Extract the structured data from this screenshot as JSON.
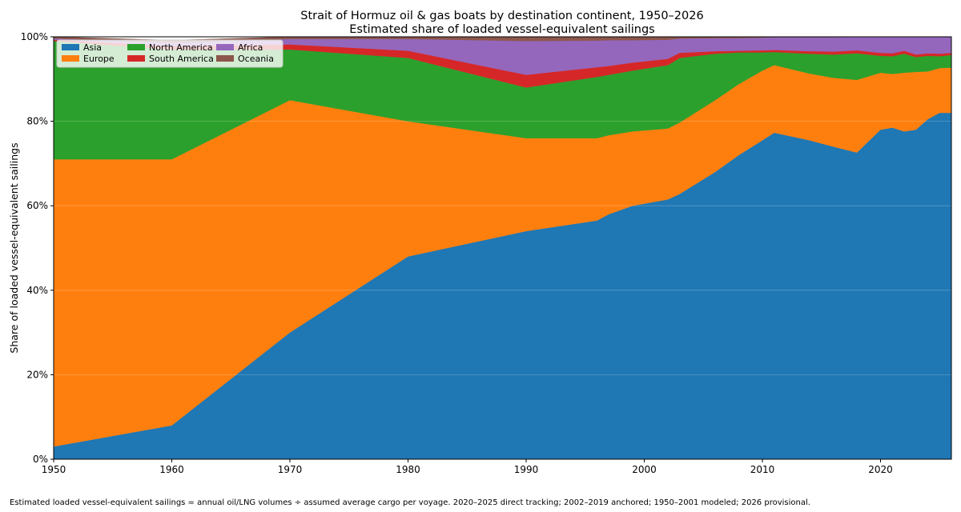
{
  "chart_data": {
    "type": "area",
    "stacked": true,
    "title": "Strait of Hormuz oil & gas boats by destination continent, 1950–2026",
    "subtitle": "Estimated share of loaded vessel-equivalent sailings",
    "xlabel": "",
    "ylabel": "Share of loaded vessel-equivalent sailings",
    "xlim": [
      1950,
      2026
    ],
    "ylim": [
      0,
      100
    ],
    "x_ticks": [
      1950,
      1960,
      1970,
      1980,
      1990,
      2000,
      2010,
      2020
    ],
    "y_ticks": [
      0,
      20,
      40,
      60,
      80,
      100
    ],
    "y_tick_labels": [
      "0%",
      "20%",
      "40%",
      "60%",
      "80%",
      "100%"
    ],
    "legend_position": "top-left",
    "grid": "horizontal",
    "x": [
      1950,
      1960,
      1970,
      1980,
      1990,
      1996,
      1997,
      1999,
      2002,
      2003,
      2006,
      2008,
      2010,
      2011,
      2014,
      2016,
      2018,
      2020,
      2021,
      2022,
      2023,
      2024,
      2025,
      2026
    ],
    "series": [
      {
        "name": "Asia",
        "color": "#1f77b4",
        "values": [
          3,
          8,
          30,
          48,
          54,
          56.5,
          58,
          60,
          61.5,
          62.8,
          68,
          72,
          75.5,
          77.3,
          75.5,
          74,
          72.6,
          78,
          78.5,
          77.6,
          78,
          80.5,
          82,
          82
        ]
      },
      {
        "name": "Europe",
        "color": "#ff7f0e",
        "values": [
          68,
          63,
          55,
          32,
          22,
          19.5,
          18.7,
          17.6,
          16.8,
          16.9,
          17,
          16.8,
          16.5,
          16,
          15.8,
          16.3,
          17.2,
          13.5,
          12.7,
          13.9,
          13.7,
          11.3,
          10.6,
          10.7
        ]
      },
      {
        "name": "North America",
        "color": "#2ca02c",
        "values": [
          28,
          26,
          12,
          15,
          12,
          14.5,
          14.3,
          14.4,
          15,
          15.3,
          11,
          7.5,
          4.3,
          3.1,
          4.7,
          5.5,
          6.3,
          4,
          4.2,
          4.5,
          3.5,
          3.7,
          2.8,
          3
        ]
      },
      {
        "name": "South America",
        "color": "#d62728",
        "values": [
          0.3,
          0.8,
          1.2,
          1.7,
          3,
          2.3,
          2.1,
          1.9,
          1.5,
          1.2,
          0.6,
          0.4,
          0.5,
          0.5,
          0.6,
          0.7,
          0.7,
          0.7,
          0.7,
          0.7,
          0.6,
          0.6,
          0.6,
          0.5
        ]
      },
      {
        "name": "Africa",
        "color": "#9467bd",
        "values": [
          0.3,
          0.8,
          1.3,
          2.8,
          8,
          6.3,
          6.1,
          5.3,
          4.5,
          3.4,
          3.1,
          3,
          3,
          3,
          3.3,
          3.4,
          3.2,
          3.8,
          3.9,
          3.3,
          4.2,
          3.9,
          4,
          3.8
        ]
      },
      {
        "name": "Oceania",
        "color": "#8c564b",
        "values": [
          0.4,
          0.6,
          0.5,
          0.5,
          1,
          0.9,
          0.8,
          0.8,
          0.7,
          0.4,
          0.3,
          0.3,
          0.2,
          0.1,
          0.1,
          0.1,
          0,
          0,
          0,
          0,
          0,
          0,
          0,
          0
        ]
      }
    ]
  },
  "footnote": "Estimated loaded vessel-equivalent sailings = annual oil/LNG volumes ÷ assumed average cargo per voyage. 2020–2025 direct tracking; 2002–2019 anchored; 1950–2001 modeled; 2026 provisional."
}
